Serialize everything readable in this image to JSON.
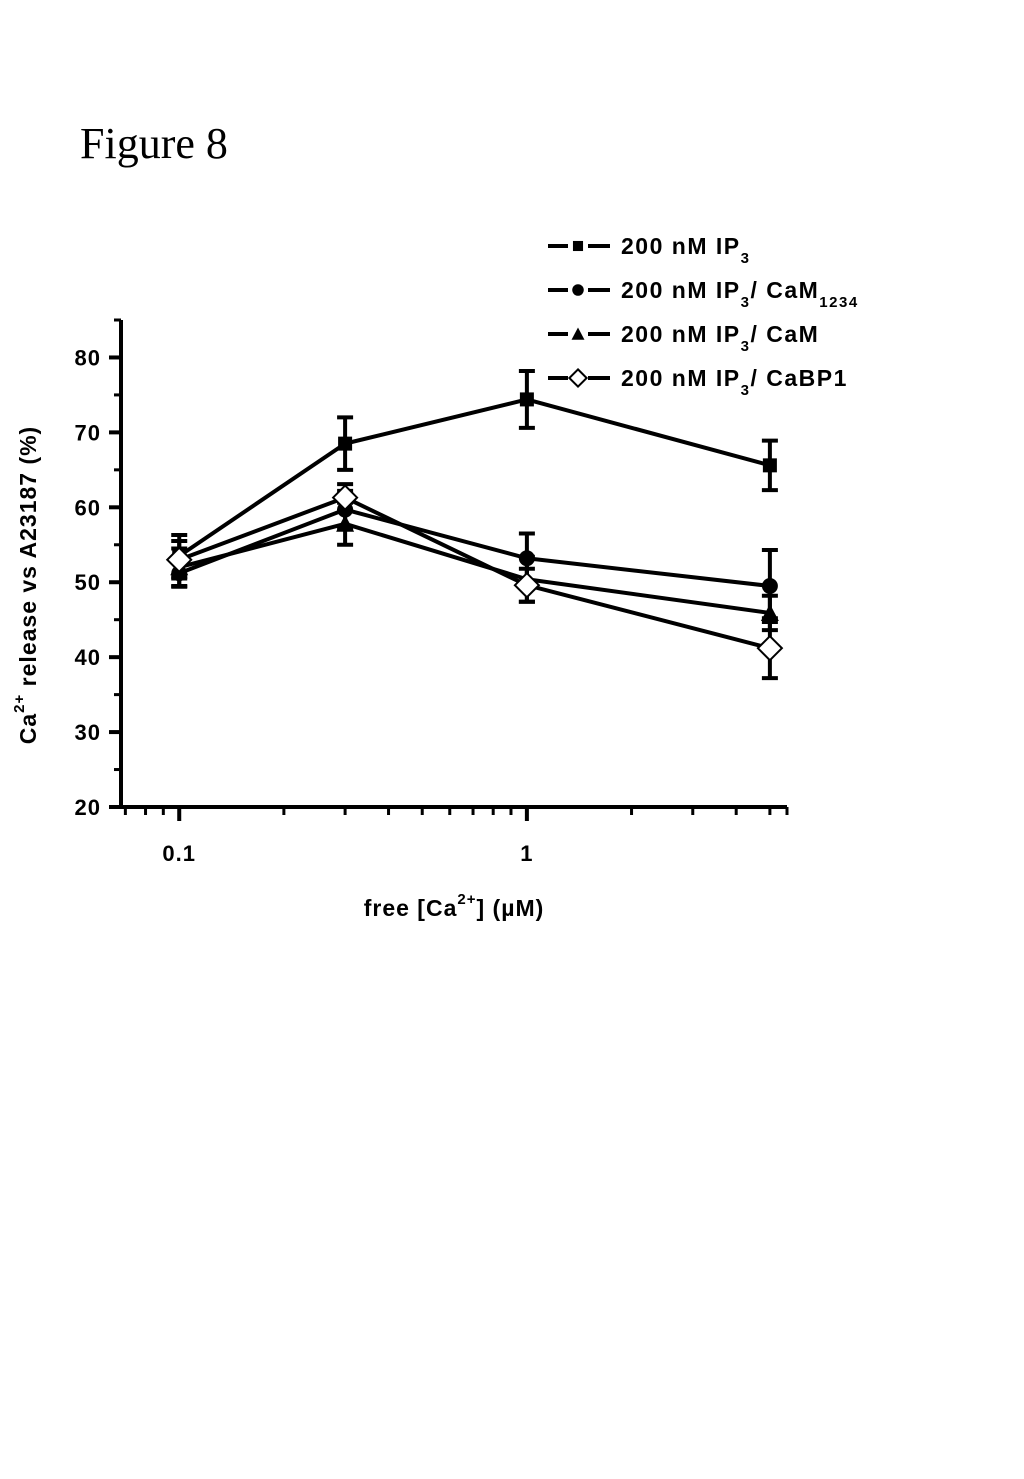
{
  "figure_title": "Figure 8",
  "chart_data": {
    "type": "line",
    "x_scale": "log",
    "xlabel": "free [Ca2+] (µM)",
    "xlabel_parts": {
      "prefix": "free [Ca",
      "sup": "2+",
      "suffix": "] (µM)"
    },
    "ylabel": "Ca2+ release vs A23187 (%)",
    "ylabel_parts": {
      "prefix": "Ca",
      "sup": "2+",
      "suffix": " release vs A23187 (%)"
    },
    "xlim": [
      0.068,
      5.6
    ],
    "ylim": [
      20,
      85
    ],
    "x_ticks": [
      {
        "value": 0.1,
        "label": "0.1"
      },
      {
        "value": 1,
        "label": "1"
      }
    ],
    "y_ticks": [
      20,
      30,
      40,
      50,
      60,
      70,
      80
    ],
    "y_tick_labels": [
      "20",
      "30",
      "40",
      "50",
      "60",
      "70",
      "80"
    ],
    "legend_position": "top-right",
    "x": [
      0.1,
      0.3,
      1,
      5
    ],
    "series": [
      {
        "name": "200 nM IP3",
        "legend": {
          "prefix": "200 nM IP",
          "sub": "3",
          "suffix": "",
          "sub2": ""
        },
        "marker": "square",
        "color": "#000000",
        "values": [
          53.5,
          68.5,
          74.4,
          65.6
        ],
        "errors": [
          2.8,
          3.5,
          3.8,
          3.3
        ]
      },
      {
        "name": "200 nM IP3/ CaM1234",
        "legend": {
          "prefix": "200 nM IP",
          "sub": "3",
          "suffix": "/ CaM",
          "sub2": "1234"
        },
        "marker": "circle",
        "color": "#000000",
        "values": [
          51.2,
          59.7,
          53.2,
          49.5
        ],
        "errors": [
          1.8,
          2.5,
          3.3,
          4.8
        ]
      },
      {
        "name": "200 nM IP3/ CaM",
        "legend": {
          "prefix": "200 nM IP",
          "sub": "3",
          "suffix": "/ CaM",
          "sub2": ""
        },
        "marker": "triangle",
        "color": "#000000",
        "values": [
          52.0,
          57.8,
          50.4,
          45.9
        ],
        "errors": [
          2.5,
          2.8,
          3.0,
          2.3
        ]
      },
      {
        "name": "200 nM IP3/ CaBP1",
        "legend": {
          "prefix": "200 nM IP",
          "sub": "3",
          "suffix": "/ CaBP1",
          "sub2": ""
        },
        "marker": "diamond-open",
        "color": "#000000",
        "values": [
          53.0,
          61.3,
          49.6,
          41.2
        ],
        "errors": [
          2.5,
          1.8,
          2.2,
          4.0
        ]
      }
    ]
  }
}
